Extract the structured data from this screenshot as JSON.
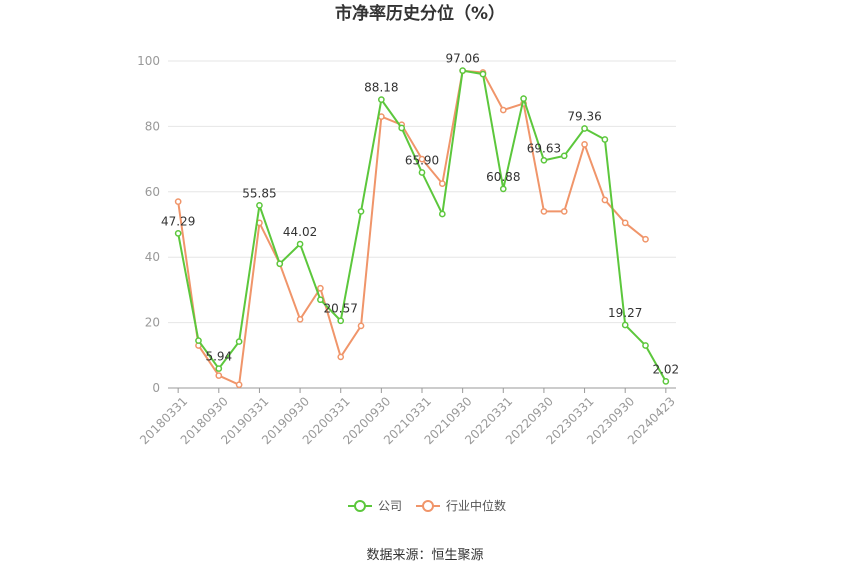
{
  "chart_data": {
    "type": "line",
    "title": "市净率历史分位（%）",
    "ylim": [
      0,
      100
    ],
    "yticks": [
      0,
      20,
      40,
      60,
      80,
      100
    ],
    "x": [
      "20180331",
      "20180630",
      "20180930",
      "20181231",
      "20190331",
      "20190630",
      "20190930",
      "20191231",
      "20200331",
      "20200630",
      "20200930",
      "20201231",
      "20210331",
      "20210630",
      "20210930",
      "20211231",
      "20220331",
      "20220630",
      "20220930",
      "20221231",
      "20230331",
      "20230630",
      "20230930",
      "20231231",
      "20240423"
    ],
    "xtick_labels": [
      "20180331",
      "20180930",
      "20190331",
      "20190930",
      "20200331",
      "20200930",
      "20210331",
      "20210930",
      "20220331",
      "20220930",
      "20230331",
      "20230930",
      "20240423"
    ],
    "grid": true,
    "legend_position": "bottom",
    "series": [
      {
        "name": "公司",
        "color": "#5cc73c",
        "values": [
          47.29,
          14.5,
          5.94,
          14.2,
          55.85,
          38.0,
          44.02,
          27.0,
          20.57,
          54.0,
          88.18,
          79.5,
          65.9,
          53.2,
          97.06,
          96.0,
          60.88,
          88.5,
          69.63,
          71.0,
          79.36,
          76.0,
          19.27,
          13.0,
          2.02
        ],
        "data_labels": [
          {
            "index": 0,
            "text": "47.29"
          },
          {
            "index": 2,
            "text": "5.94"
          },
          {
            "index": 4,
            "text": "55.85"
          },
          {
            "index": 6,
            "text": "44.02"
          },
          {
            "index": 8,
            "text": "20.57"
          },
          {
            "index": 10,
            "text": "88.18"
          },
          {
            "index": 12,
            "text": "65.90"
          },
          {
            "index": 14,
            "text": "97.06"
          },
          {
            "index": 16,
            "text": "60.88"
          },
          {
            "index": 18,
            "text": "69.63"
          },
          {
            "index": 20,
            "text": "79.36"
          },
          {
            "index": 22,
            "text": "19.27"
          },
          {
            "index": 24,
            "text": "2.02"
          }
        ]
      },
      {
        "name": "行业中位数",
        "color": "#f0956a",
        "values": [
          57.0,
          13.0,
          3.8,
          1.0,
          50.5,
          38.0,
          21.0,
          30.5,
          9.5,
          19.0,
          83.0,
          80.5,
          70.0,
          62.5,
          97.0,
          96.5,
          85.0,
          87.0,
          54.0,
          54.0,
          74.5,
          57.5,
          50.5,
          45.5,
          null
        ]
      }
    ]
  },
  "source_text": "数据来源：恒生聚源"
}
